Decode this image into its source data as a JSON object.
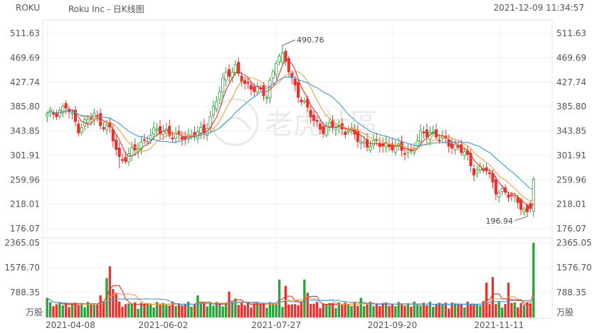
{
  "header": {
    "symbol": "ROKU",
    "title": "Roku Inc - 日K线图",
    "timestamp": "2021-12-09 11:34:57"
  },
  "watermark": {
    "text": "老虎社區"
  },
  "colors": {
    "up": "#2aa33a",
    "down": "#e8322b",
    "ma5": "#e8322b",
    "ma10": "#f0a040",
    "ma20": "#3a9bd6"
  },
  "chart_data": [
    {
      "type": "candlestick",
      "price_ticks": [
        "511.63",
        "469.69",
        "427.74",
        "385.80",
        "343.85",
        "301.91",
        "259.96",
        "218.01",
        "176.07"
      ],
      "ylim": [
        176.07,
        511.63
      ],
      "date_labels": [
        "2021-04-08",
        "2021-06-02",
        "2021-07-27",
        "2021-09-20",
        "2021-11-11"
      ],
      "annotations": [
        {
          "label": "490.76",
          "value": 490.76,
          "note": "high"
        },
        {
          "label": "196.94",
          "value": 196.94,
          "note": "low"
        }
      ],
      "series": [
        {
          "name": "MA5",
          "color": "#e8322b"
        },
        {
          "name": "MA10",
          "color": "#f0a040"
        },
        {
          "name": "MA20",
          "color": "#3a9bd6"
        }
      ],
      "anchors": [
        {
          "i": 0,
          "p": 370
        },
        {
          "i": 6,
          "p": 385
        },
        {
          "i": 10,
          "p": 350
        },
        {
          "i": 15,
          "p": 370
        },
        {
          "i": 20,
          "p": 345
        },
        {
          "i": 23,
          "p": 295
        },
        {
          "i": 28,
          "p": 310
        },
        {
          "i": 33,
          "p": 340
        },
        {
          "i": 38,
          "p": 345
        },
        {
          "i": 42,
          "p": 330
        },
        {
          "i": 47,
          "p": 340
        },
        {
          "i": 50,
          "p": 340
        },
        {
          "i": 53,
          "p": 385
        },
        {
          "i": 57,
          "p": 440
        },
        {
          "i": 60,
          "p": 455
        },
        {
          "i": 63,
          "p": 420
        },
        {
          "i": 67,
          "p": 420
        },
        {
          "i": 70,
          "p": 400
        },
        {
          "i": 73,
          "p": 470
        },
        {
          "i": 75,
          "p": 480
        },
        {
          "i": 78,
          "p": 430
        },
        {
          "i": 82,
          "p": 390
        },
        {
          "i": 85,
          "p": 360
        },
        {
          "i": 88,
          "p": 348
        },
        {
          "i": 92,
          "p": 352
        },
        {
          "i": 96,
          "p": 345
        },
        {
          "i": 100,
          "p": 325
        },
        {
          "i": 104,
          "p": 320
        },
        {
          "i": 108,
          "p": 322
        },
        {
          "i": 112,
          "p": 312
        },
        {
          "i": 116,
          "p": 310
        },
        {
          "i": 119,
          "p": 335
        },
        {
          "i": 122,
          "p": 345
        },
        {
          "i": 125,
          "p": 330
        },
        {
          "i": 129,
          "p": 322
        },
        {
          "i": 133,
          "p": 305
        },
        {
          "i": 136,
          "p": 278
        },
        {
          "i": 140,
          "p": 276
        },
        {
          "i": 143,
          "p": 245
        },
        {
          "i": 147,
          "p": 232
        },
        {
          "i": 150,
          "p": 228
        },
        {
          "i": 152,
          "p": 205
        },
        {
          "i": 154,
          "p": 212
        },
        {
          "i": 155,
          "p": 262
        }
      ]
    },
    {
      "type": "bar",
      "title": "volume",
      "volume_ticks": [
        "2365.05",
        "1576.70",
        "788.35"
      ],
      "unit": "万股",
      "ylim": [
        0,
        2365.05
      ],
      "spikes": [
        {
          "i": 0,
          "v": 620
        },
        {
          "i": 17,
          "v": 700
        },
        {
          "i": 19,
          "v": 1250
        },
        {
          "i": 20,
          "v": 1620
        },
        {
          "i": 21,
          "v": 900
        },
        {
          "i": 22,
          "v": 780
        },
        {
          "i": 48,
          "v": 700
        },
        {
          "i": 58,
          "v": 820
        },
        {
          "i": 60,
          "v": 600
        },
        {
          "i": 74,
          "v": 1200
        },
        {
          "i": 76,
          "v": 1000
        },
        {
          "i": 82,
          "v": 1200
        },
        {
          "i": 83,
          "v": 780
        },
        {
          "i": 100,
          "v": 620
        },
        {
          "i": 140,
          "v": 1100
        },
        {
          "i": 142,
          "v": 1280
        },
        {
          "i": 147,
          "v": 1100
        },
        {
          "i": 155,
          "v": 2365
        }
      ]
    }
  ]
}
